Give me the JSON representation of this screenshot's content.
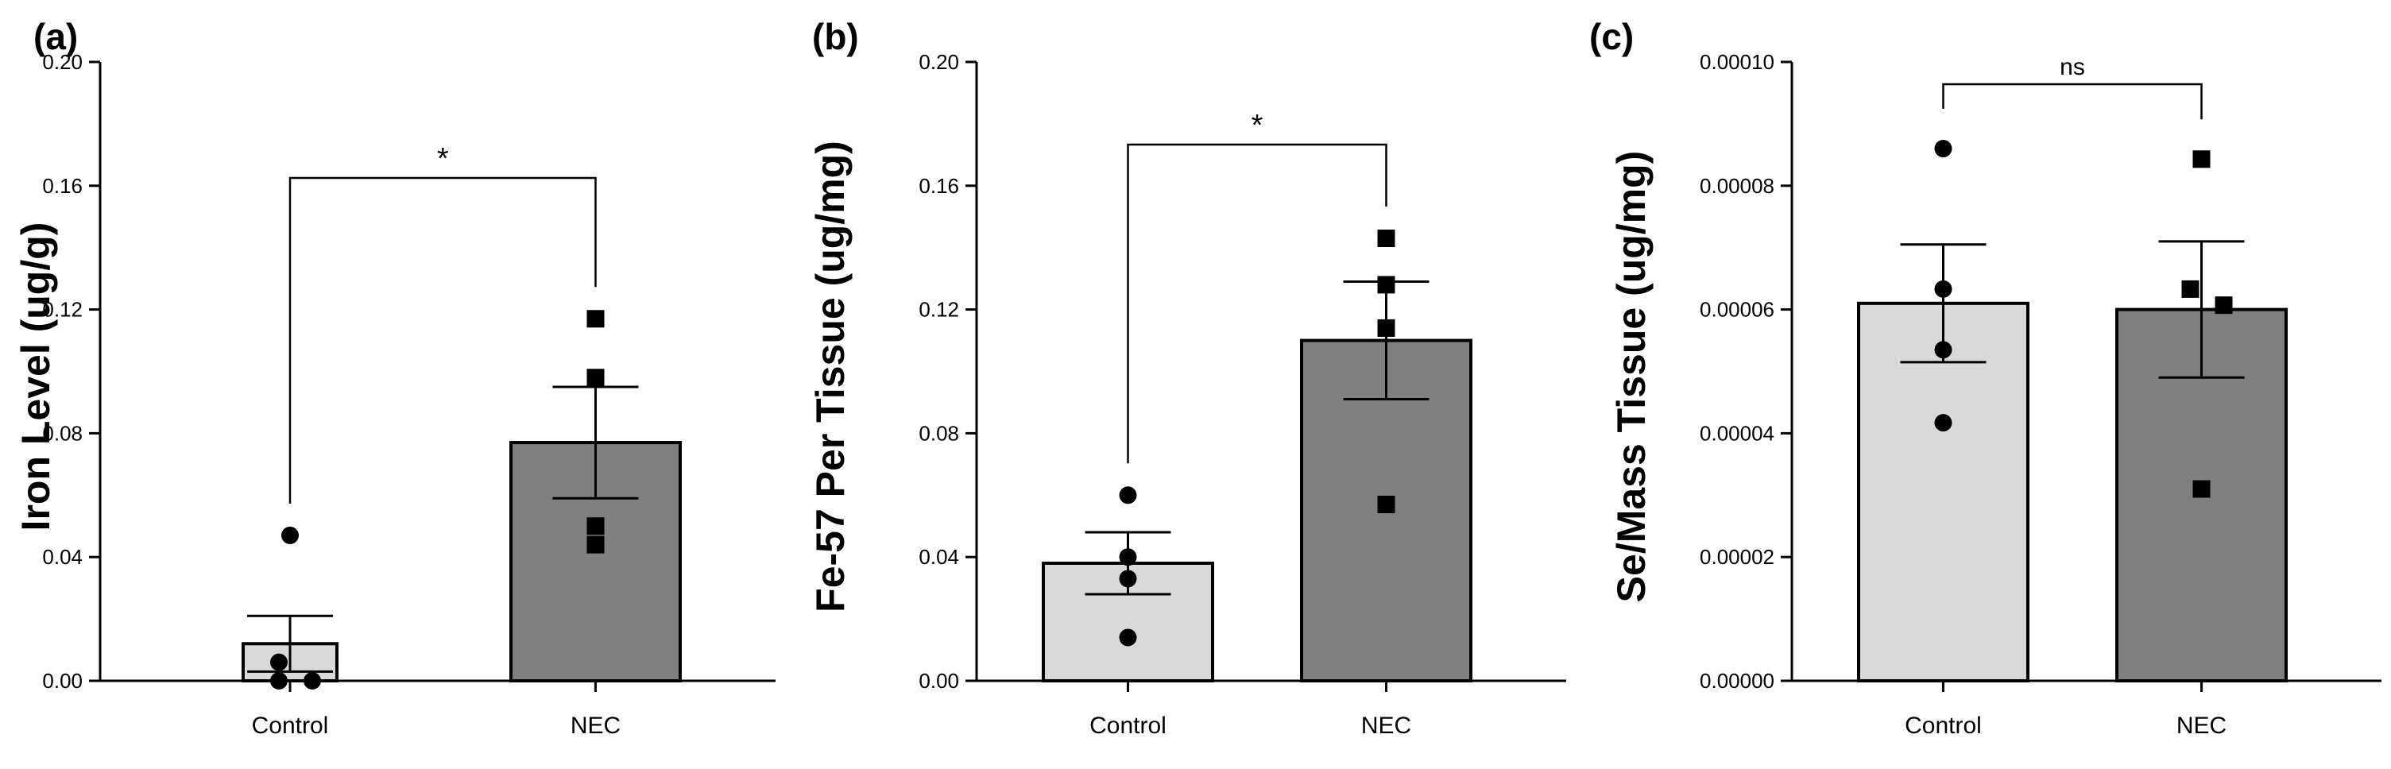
{
  "colors": {
    "control": "#d9d9d9",
    "nec": "#808080",
    "stroke": "#000000"
  },
  "chart_data": [
    {
      "panel": "(a)",
      "type": "bar",
      "categories": [
        "Control",
        "NEC"
      ],
      "values": [
        0.012,
        0.077
      ],
      "sem": [
        0.009,
        0.018
      ],
      "points": [
        [
          0.047,
          0.006,
          0.0,
          0.0
        ],
        [
          0.117,
          0.098,
          0.05,
          0.044
        ]
      ],
      "markers": [
        "circle",
        "square"
      ],
      "ylabel": "Iron Level (ug/g)",
      "ylim": [
        0,
        0.2
      ],
      "yticks": [
        "0.00",
        "0.04",
        "0.08",
        "0.12",
        "0.16",
        "0.20"
      ],
      "significance": "*"
    },
    {
      "panel": "(b)",
      "type": "bar",
      "categories": [
        "Control",
        "NEC"
      ],
      "values": [
        0.038,
        0.11
      ],
      "sem": [
        0.01,
        0.019
      ],
      "points": [
        [
          0.06,
          0.04,
          0.033,
          0.014
        ],
        [
          0.143,
          0.128,
          0.114,
          0.057
        ]
      ],
      "markers": [
        "circle",
        "square"
      ],
      "ylabel": "Fe-57 Per Tissue (ug/mg)",
      "ylim": [
        0,
        0.2
      ],
      "yticks": [
        "0.00",
        "0.04",
        "0.08",
        "0.12",
        "0.16",
        "0.20"
      ],
      "significance": "*"
    },
    {
      "panel": "(c)",
      "type": "bar",
      "categories": [
        "Control",
        "NEC"
      ],
      "values": [
        6.1e-05,
        6e-05
      ],
      "sem": [
        9.5e-06,
        1.1e-05
      ],
      "points": [
        [
          8.6e-05,
          6.33e-05,
          5.35e-05,
          4.17e-05
        ],
        [
          8.43e-05,
          6.33e-05,
          6.07e-05,
          3.1e-05
        ]
      ],
      "markers": [
        "circle",
        "square"
      ],
      "ylabel": "Se/Mass Tissue (ug/mg)",
      "ylim": [
        0,
        0.0001
      ],
      "yticks": [
        "0.00000",
        "0.00002",
        "0.00004",
        "0.00006",
        "0.00008",
        "0.00010"
      ],
      "significance": "ns"
    }
  ]
}
